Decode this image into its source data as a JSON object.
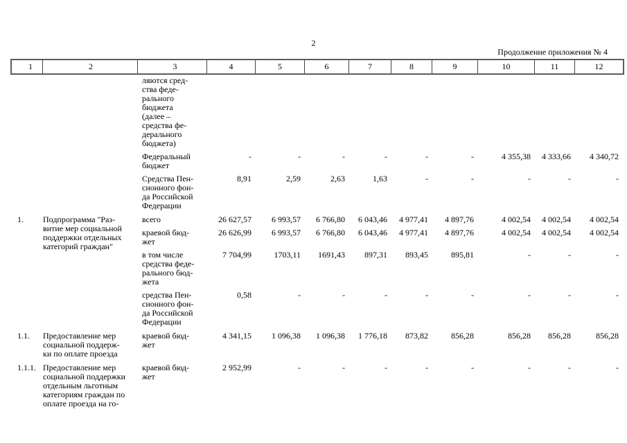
{
  "page": {
    "number": "2",
    "continuation": "Продолжение приложения № 4"
  },
  "table": {
    "header_cols": [
      "1",
      "2",
      "3",
      "4",
      "5",
      "6",
      "7",
      "8",
      "9",
      "10",
      "11",
      "12"
    ],
    "groups": [
      {
        "num": "",
        "name": "",
        "rows": [
          {
            "label": "ляются сред-\nства феде-\nрального\nбюджета\n(далее –\nсредства фе-\nдерального\nбюджета)",
            "values": []
          },
          {
            "label": "Федеральный\nбюджет",
            "values": [
              "-",
              "-",
              "-",
              "-",
              "-",
              "-",
              "4 355,38",
              "4 333,66",
              "4 340,72"
            ]
          },
          {
            "label": "Средства Пен-\nсионного фон-\nда Российской\nФедерации",
            "values": [
              "8,91",
              "2,59",
              "2,63",
              "1,63",
              "-",
              "-",
              "-",
              "-",
              "-"
            ]
          }
        ]
      },
      {
        "num": "1.",
        "name": "Подпрограмма \"Раз-\nвитие мер социальной\nподдержки отдельных\nкатегорий граждан\"",
        "rows": [
          {
            "label": "всего",
            "values": [
              "26 627,57",
              "6 993,57",
              "6 766,80",
              "6 043,46",
              "4 977,41",
              "4 897,76",
              "4 002,54",
              "4 002,54",
              "4 002,54"
            ]
          },
          {
            "label": "краевой бюд-\nжет",
            "values": [
              "26 626,99",
              "6 993,57",
              "6 766,80",
              "6 043,46",
              "4 977,41",
              "4 897,76",
              "4 002,54",
              "4 002,54",
              "4 002,54"
            ]
          },
          {
            "label": "в том числе\nсредства феде-\nрального бюд-\nжета",
            "values": [
              "7 704,99",
              "1703,11",
              "1691,43",
              "897,31",
              "893,45",
              "895,81",
              "-",
              "-",
              "-"
            ]
          },
          {
            "label": "средства Пен-\nсионного фон-\nда Российской\nФедерации",
            "values": [
              "0,58",
              "-",
              "-",
              "-",
              "-",
              "-",
              "-",
              "-",
              "-"
            ]
          }
        ]
      },
      {
        "num": "1.1.",
        "name": "Предоставление мер\nсоциальной поддерж-\nки по оплате проезда",
        "rows": [
          {
            "label": "краевой бюд-\nжет",
            "values": [
              "4 341,15",
              "1 096,38",
              "1 096,38",
              "1 776,18",
              "873,82",
              "856,28",
              "856,28",
              "856,28",
              "856,28"
            ]
          }
        ]
      },
      {
        "num": "1.1.1.",
        "name": "Предоставление мер\nсоциальной поддержки\nотдельным льготным\nкатегориям граждан по\nоплате проезда на го-",
        "rows": [
          {
            "label": "краевой бюд-\nжет",
            "values": [
              "2 952,99",
              "-",
              "-",
              "-",
              "-",
              "-",
              "-",
              "-",
              "-"
            ]
          }
        ]
      }
    ]
  }
}
